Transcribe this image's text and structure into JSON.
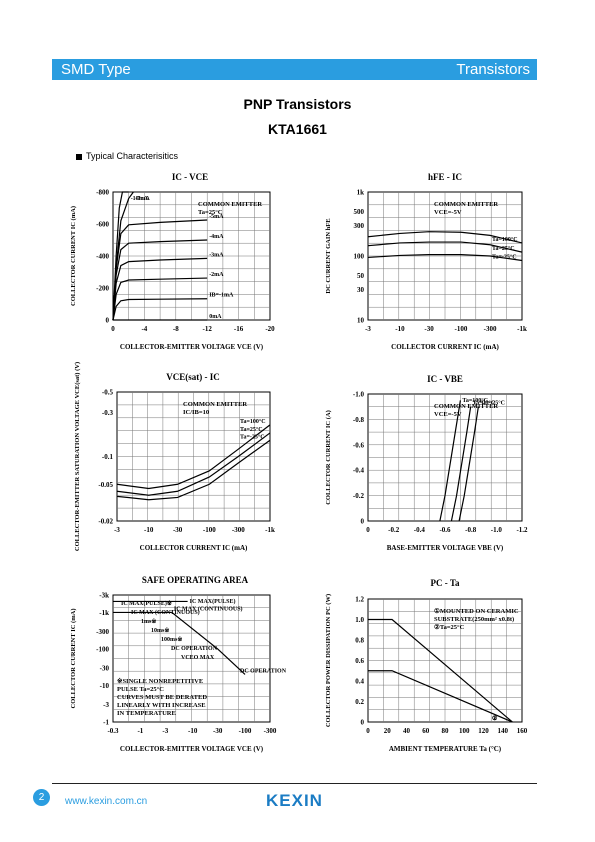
{
  "header": {
    "left": "SMD Type",
    "right": "Transistors"
  },
  "title": "PNP  Transistors",
  "part": "KTA1661",
  "section": "Typical  Characterisitics",
  "footer": {
    "page": "2",
    "url": "www.kexin.com.cn",
    "logo": "KEXIN"
  },
  "watermark": "KEXIN",
  "colors": {
    "accent": "#2a9de0",
    "logo": "#1b7cc4"
  },
  "chart_data": [
    {
      "type": "line",
      "title": "IC - VCE",
      "xlabel": "COLLECTOR-EMITTER VOLTAGE VCE (V)",
      "ylabel": "COLLECTOR CURRENT IC (mA)",
      "xticks": [
        "0",
        "-4",
        "-8",
        "-12",
        "-16",
        "-20"
      ],
      "yticks": [
        "0",
        "-200",
        "-400",
        "-600",
        "-800"
      ],
      "xlim": [
        0,
        -20
      ],
      "ylim": [
        0,
        -800
      ],
      "annotation": [
        "COMMON EMITTER",
        "Ta=25°C"
      ],
      "series": [
        {
          "name": "-10mA",
          "x": [
            0,
            -0.4,
            -0.8,
            -1.2,
            -2
          ],
          "y": [
            0,
            -400,
            -700,
            -800,
            -850
          ]
        },
        {
          "name": "-7mA",
          "x": [
            0,
            -0.4,
            -1,
            -2,
            -2.6
          ],
          "y": [
            0,
            -330,
            -620,
            -760,
            -800
          ]
        },
        {
          "name": "-5mA",
          "x": [
            0,
            -0.4,
            -1,
            -2,
            -6,
            -12
          ],
          "y": [
            0,
            -320,
            -540,
            -595,
            -610,
            -625
          ]
        },
        {
          "name": "-4mA",
          "x": [
            0,
            -0.4,
            -1,
            -2,
            -6,
            -12
          ],
          "y": [
            0,
            -280,
            -440,
            -480,
            -490,
            -500
          ]
        },
        {
          "name": "-3mA",
          "x": [
            0,
            -0.4,
            -1,
            -2,
            -6,
            -12
          ],
          "y": [
            0,
            -230,
            -340,
            -365,
            -375,
            -385
          ]
        },
        {
          "name": "-2mA",
          "x": [
            0,
            -0.4,
            -1,
            -2,
            -6,
            -12
          ],
          "y": [
            0,
            -160,
            -235,
            -250,
            -255,
            -262
          ]
        },
        {
          "name": "IB=-1mA",
          "x": [
            0,
            -0.4,
            -1,
            -2,
            -6,
            -12
          ],
          "y": [
            0,
            -85,
            -120,
            -128,
            -130,
            -133
          ]
        },
        {
          "name": "0mA",
          "x": [
            0,
            -12
          ],
          "y": [
            0,
            0
          ]
        }
      ]
    },
    {
      "type": "line",
      "title": "hFE - IC",
      "xlabel": "COLLECTOR CURRENT IC (mA)",
      "ylabel": "DC CURRENT GAIN hFE",
      "xticks": [
        "-3",
        "-10",
        "-30",
        "-100",
        "-300",
        "-1k"
      ],
      "yticks": [
        "10",
        "30",
        "50",
        "100",
        "300",
        "500",
        "1k"
      ],
      "xlim": [
        -3,
        -1000
      ],
      "ylim": [
        10,
        1000
      ],
      "xscale": "log",
      "yscale": "log",
      "annotation": [
        "COMMON EMITTER",
        "VCE=-5V"
      ],
      "series": [
        {
          "name": "Ta=100°C",
          "x": [
            -3,
            -10,
            -30,
            -100,
            -300,
            -1000
          ],
          "y": [
            200,
            225,
            240,
            235,
            210,
            160
          ]
        },
        {
          "name": "Ta=25°C",
          "x": [
            -3,
            -10,
            -30,
            -100,
            -300,
            -1000
          ],
          "y": [
            145,
            160,
            165,
            165,
            150,
            115
          ]
        },
        {
          "name": "Ta=-25°C",
          "x": [
            -3,
            -10,
            -30,
            -100,
            -300,
            -1000
          ],
          "y": [
            95,
            102,
            105,
            105,
            100,
            85
          ]
        }
      ]
    },
    {
      "type": "line",
      "title": "VCE(sat) - IC",
      "xlabel": "COLLECTOR CURRENT IC (mA)",
      "ylabel": "COLLECTOR-EMITTER SATURATION VOLTAGE VCE(sat) (V)",
      "xticks": [
        "-3",
        "-10",
        "-30",
        "-100",
        "-300",
        "-1k"
      ],
      "yticks": [
        "-0.02",
        "-0.05",
        "-0.1",
        "-0.3",
        "-0.5"
      ],
      "xlim": [
        -3,
        -1000
      ],
      "ylim": [
        -0.02,
        -0.5
      ],
      "xscale": "log",
      "yscale": "log",
      "annotation": [
        "COMMON EMITTER",
        "IC/IB=10"
      ],
      "series": [
        {
          "name": "Ta=100°C",
          "x": [
            -3,
            -10,
            -30,
            -100,
            -300,
            -1000
          ],
          "y": [
            -0.05,
            -0.045,
            -0.05,
            -0.07,
            -0.12,
            -0.22
          ]
        },
        {
          "name": "Ta=25°C",
          "x": [
            -3,
            -10,
            -30,
            -100,
            -300,
            -1000
          ],
          "y": [
            -0.042,
            -0.038,
            -0.042,
            -0.06,
            -0.1,
            -0.18
          ]
        },
        {
          "name": "Ta=-25°C",
          "x": [
            -3,
            -10,
            -30,
            -100,
            -300,
            -1000
          ],
          "y": [
            -0.037,
            -0.034,
            -0.036,
            -0.05,
            -0.085,
            -0.15
          ]
        }
      ]
    },
    {
      "type": "line",
      "title": "IC - VBE",
      "xlabel": "BASE-EMITTER VOLTAGE VBE (V)",
      "ylabel": "COLLECTOR CURRENT IC (A)",
      "xticks": [
        "0",
        "-0.2",
        "-0.4",
        "-0.6",
        "-0.8",
        "-1.0",
        "-1.2"
      ],
      "yticks": [
        "0",
        "-0.2",
        "-0.4",
        "-0.6",
        "-0.8",
        "-1.0"
      ],
      "xlim": [
        0,
        -1.2
      ],
      "ylim": [
        0,
        -1.0
      ],
      "annotation": [
        "COMMON EMITTER",
        "VCE=-5V"
      ],
      "series": [
        {
          "name": "Ta=100°C",
          "x": [
            -0.56,
            -0.6,
            -0.64,
            -0.68,
            -0.72
          ],
          "y": [
            0,
            -0.2,
            -0.45,
            -0.7,
            -0.95
          ]
        },
        {
          "name": "Ta=25°C",
          "x": [
            -0.65,
            -0.69,
            -0.73,
            -0.77,
            -0.8
          ],
          "y": [
            0,
            -0.2,
            -0.45,
            -0.7,
            -0.9
          ]
        },
        {
          "name": "Ta=-25°C",
          "x": [
            -0.71,
            -0.75,
            -0.79,
            -0.83,
            -0.86
          ],
          "y": [
            0,
            -0.2,
            -0.45,
            -0.7,
            -0.9
          ]
        }
      ]
    },
    {
      "type": "line",
      "title": "SAFE OPERATING AREA",
      "xlabel": "COLLECTOR-EMITTER VOLTAGE VCE (V)",
      "ylabel": "COLLECTOR CURRENT IC (mA)",
      "xticks": [
        "-0.3",
        "-1",
        "-3",
        "-10",
        "-30",
        "-100",
        "-300"
      ],
      "yticks": [
        "-1",
        "-3",
        "-10",
        "-30",
        "-100",
        "-300",
        "-1k",
        "-3k"
      ],
      "xlim": [
        -0.3,
        -300
      ],
      "ylim": [
        -1,
        -3000
      ],
      "xscale": "log",
      "yscale": "log",
      "labels": [
        "IC MAX(PULSE)※",
        "IC MAX (CONTINUOUS)",
        "1ms※",
        "10ms※",
        "100ms※",
        "DC OPERATION",
        "VCEO MAX"
      ],
      "annotation": [
        "※SINGLE NONREPETITIVE",
        "PULSE Ta=25°C",
        "CURVES MUST BE DERATED",
        "LINEARLY WITH INCREASE",
        "IN TEMPERATURE"
      ],
      "series": [
        {
          "name": "IC MAX(PULSE)",
          "x": [
            -0.3,
            -8
          ],
          "y": [
            -2000,
            -2000
          ]
        },
        {
          "name": "IC MAX (CONTINUOUS)",
          "x": [
            -0.3,
            -4
          ],
          "y": [
            -1000,
            -1000
          ]
        },
        {
          "name": "DC OPERATION",
          "x": [
            -4,
            -30,
            -100
          ],
          "y": [
            -1000,
            -100,
            -20
          ]
        }
      ]
    },
    {
      "type": "line",
      "title": "PC - Ta",
      "xlabel": "AMBIENT TEMPERATURE Ta (°C)",
      "ylabel": "COLLECTOR POWER DISSIPATION PC (W)",
      "xticks": [
        "0",
        "20",
        "40",
        "60",
        "80",
        "100",
        "120",
        "140",
        "160"
      ],
      "yticks": [
        "0",
        "0.2",
        "0.4",
        "0.6",
        "0.8",
        "1.0",
        "1.2"
      ],
      "xlim": [
        0,
        160
      ],
      "ylim": [
        0,
        1.2
      ],
      "annotation": [
        "①MOUNTED ON CERAMIC",
        "SUBSTRATE(250mm² x0.8t)",
        "②Ta=25°C"
      ],
      "series": [
        {
          "name": "①",
          "x": [
            0,
            25,
            150
          ],
          "y": [
            1.0,
            1.0,
            0
          ]
        },
        {
          "name": "②",
          "x": [
            0,
            25,
            150
          ],
          "y": [
            0.5,
            0.5,
            0
          ]
        }
      ]
    }
  ]
}
